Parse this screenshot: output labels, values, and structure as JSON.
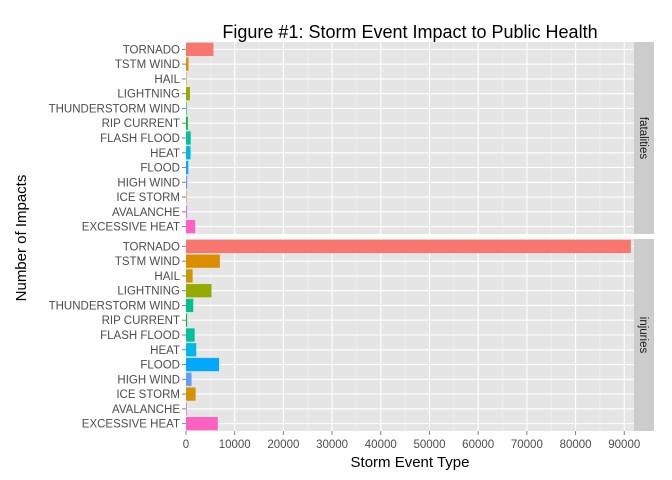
{
  "chart_data": {
    "type": "bar",
    "orientation": "horizontal",
    "title": "Figure #1: Storm Event Impact to Public Health",
    "xlabel": "Storm Event Type",
    "ylabel": "Number of Impacts",
    "xlim": [
      0,
      92000
    ],
    "x_ticks": [
      "0",
      "10000",
      "20000",
      "30000",
      "40000",
      "50000",
      "60000",
      "70000",
      "80000",
      "90000"
    ],
    "grid": true,
    "legend": "none",
    "categories": [
      "EXCESSIVE HEAT",
      "AVALANCHE",
      "ICE STORM",
      "HIGH WIND",
      "FLOOD",
      "HEAT",
      "FLASH FLOOD",
      "RIP CURRENT",
      "THUNDERSTORM WIND",
      "LIGHTNING",
      "HAIL",
      "TSTM WIND",
      "TORNADO"
    ],
    "colors": [
      "#FF61C3",
      "#DB72FB",
      "#D39200",
      "#619CFF",
      "#00A9FF",
      "#00B8E7",
      "#00C19A",
      "#00BA38",
      "#00C08B",
      "#93AA00",
      "#D39200",
      "#DB8E00",
      "#F8766D"
    ],
    "panels": [
      {
        "name": "fatalities",
        "values": [
          1903,
          224,
          89,
          248,
          470,
          937,
          978,
          368,
          133,
          816,
          15,
          504,
          5633
        ]
      },
      {
        "name": "injuries",
        "values": [
          6525,
          170,
          1975,
          1137,
          6789,
          2100,
          1777,
          232,
          1488,
          5230,
          1361,
          6957,
          91346
        ]
      }
    ]
  }
}
